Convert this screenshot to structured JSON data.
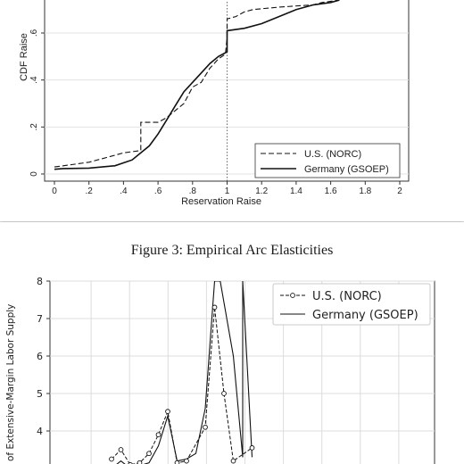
{
  "figure_caption": "Figure 3: Empirical Arc Elasticities",
  "chart_data": [
    {
      "type": "line",
      "title": "",
      "xlabel": "Reservation Raise",
      "ylabel": "CDF Raise",
      "xlim": [
        0,
        2
      ],
      "ylim": [
        0,
        0.75
      ],
      "x_ticks": [
        "0",
        ".2",
        ".4",
        ".6",
        ".8",
        "1",
        "1.2",
        "1.4",
        "1.6",
        "1.8",
        "2"
      ],
      "x_tick_values": [
        0,
        0.2,
        0.4,
        0.6,
        0.8,
        1,
        1.2,
        1.4,
        1.6,
        1.8,
        2
      ],
      "y_ticks": [
        "0",
        ".2",
        ".4",
        ".6"
      ],
      "y_tick_values": [
        0,
        0.2,
        0.4,
        0.6
      ],
      "grid": true,
      "reference_line_x": 1,
      "legend_position": "bottom-right",
      "series": [
        {
          "name": "U.S. (NORC)",
          "style": "dashed",
          "points": [
            [
              0,
              0.03
            ],
            [
              0.1,
              0.04
            ],
            [
              0.2,
              0.05
            ],
            [
              0.3,
              0.07
            ],
            [
              0.4,
              0.09
            ],
            [
              0.5,
              0.1
            ],
            [
              0.5,
              0.22
            ],
            [
              0.6,
              0.22
            ],
            [
              0.65,
              0.24
            ],
            [
              0.7,
              0.27
            ],
            [
              0.75,
              0.3
            ],
            [
              0.8,
              0.37
            ],
            [
              0.85,
              0.39
            ],
            [
              0.9,
              0.45
            ],
            [
              0.95,
              0.49
            ],
            [
              0.99,
              0.51
            ],
            [
              1,
              0.58
            ],
            [
              1,
              0.66
            ],
            [
              1.05,
              0.67
            ],
            [
              1.1,
              0.69
            ],
            [
              1.15,
              0.7
            ],
            [
              1.3,
              0.71
            ],
            [
              1.5,
              0.72
            ],
            [
              1.55,
              0.73
            ],
            [
              1.65,
              0.74
            ]
          ]
        },
        {
          "name": "Germany (GSOEP)",
          "style": "solid",
          "points": [
            [
              0,
              0.02
            ],
            [
              0.05,
              0.023
            ],
            [
              0.2,
              0.025
            ],
            [
              0.35,
              0.035
            ],
            [
              0.45,
              0.06
            ],
            [
              0.5,
              0.09
            ],
            [
              0.55,
              0.12
            ],
            [
              0.6,
              0.17
            ],
            [
              0.65,
              0.23
            ],
            [
              0.7,
              0.29
            ],
            [
              0.75,
              0.35
            ],
            [
              0.8,
              0.39
            ],
            [
              0.85,
              0.43
            ],
            [
              0.9,
              0.47
            ],
            [
              0.95,
              0.5
            ],
            [
              1,
              0.52
            ],
            [
              1,
              0.61
            ],
            [
              1.1,
              0.62
            ],
            [
              1.2,
              0.64
            ],
            [
              1.3,
              0.67
            ],
            [
              1.4,
              0.7
            ],
            [
              1.5,
              0.72
            ],
            [
              1.6,
              0.73
            ],
            [
              1.65,
              0.74
            ]
          ]
        }
      ]
    },
    {
      "type": "line",
      "title": "",
      "xlabel": "",
      "ylabel": "of Extensive-Margin Labor Supply",
      "xlim": [
        0,
        2
      ],
      "ylim": [
        3.5,
        8
      ],
      "y_ticks": [
        "8",
        "7",
        "6",
        "5",
        "4"
      ],
      "y_tick_values": [
        8,
        7,
        6,
        5,
        4
      ],
      "grid": true,
      "legend_position": "top-right",
      "series": [
        {
          "name": "U.S. (NORC)",
          "style": "dashed-circle-markers",
          "points": [
            [
              0.3,
              3.25
            ],
            [
              0.35,
              3.5
            ],
            [
              0.4,
              3.1
            ],
            [
              0.45,
              3.15
            ],
            [
              0.5,
              3.4
            ],
            [
              0.55,
              3.9
            ],
            [
              0.6,
              4.52
            ],
            [
              0.65,
              3.15
            ],
            [
              0.7,
              3.2
            ],
            [
              0.8,
              4.1
            ],
            [
              0.85,
              7.3
            ],
            [
              0.9,
              5.0
            ],
            [
              0.95,
              3.2
            ],
            [
              1.05,
              3.55
            ]
          ]
        },
        {
          "name": "Germany (GSOEP)",
          "style": "solid",
          "points": [
            [
              0.3,
              3.0
            ],
            [
              0.35,
              3.2
            ],
            [
              0.4,
              3.0
            ],
            [
              0.5,
              3.15
            ],
            [
              0.55,
              3.6
            ],
            [
              0.6,
              4.4
            ],
            [
              0.65,
              3.2
            ],
            [
              0.7,
              3.25
            ],
            [
              0.75,
              3.4
            ],
            [
              0.8,
              4.6
            ],
            [
              0.85,
              8.0
            ],
            [
              0.88,
              8.0
            ],
            [
              0.95,
              6.0
            ],
            [
              1.0,
              3.3
            ],
            [
              1.0,
              8.0
            ],
            [
              1.05,
              3.3
            ]
          ]
        }
      ]
    }
  ]
}
